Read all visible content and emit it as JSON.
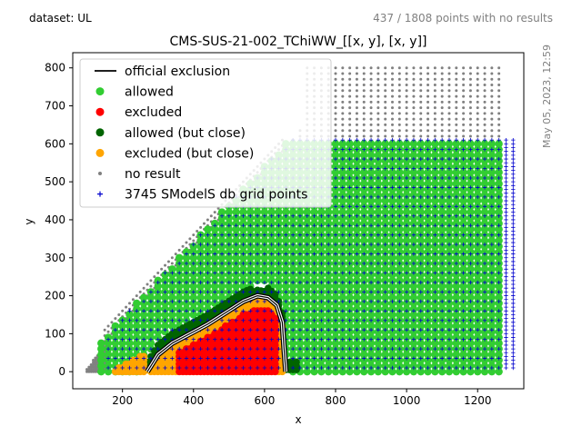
{
  "header": {
    "dataset_label": "dataset: UL",
    "no_results_label": "437 / 1808 points with no results",
    "timestamp": "May 05, 2023, 12:59"
  },
  "chart_data": {
    "type": "scatter",
    "title": "CMS-SUS-21-002_TChiWW_[[x, y], [x, y]]",
    "xlabel": "x",
    "ylabel": "y",
    "xlim": [
      60,
      1330
    ],
    "ylim": [
      -45,
      840
    ],
    "xticks": [
      "200",
      "400",
      "600",
      "800",
      "1000",
      "1200"
    ],
    "yticks": [
      "0",
      "100",
      "200",
      "300",
      "400",
      "500",
      "600",
      "700",
      "800"
    ],
    "grid": false,
    "legend_position": "top-left",
    "legend": [
      {
        "label": "official exclusion",
        "kind": "line",
        "color": "#000000"
      },
      {
        "label": "allowed",
        "kind": "marker",
        "color": "#32cd32"
      },
      {
        "label": "excluded",
        "kind": "marker",
        "color": "#ff0000"
      },
      {
        "label": "allowed (but close)",
        "kind": "marker",
        "color": "#006400"
      },
      {
        "label": "excluded (but close)",
        "kind": "marker",
        "color": "#ffa500"
      },
      {
        "label": "no result",
        "kind": "dot",
        "color": "#808080"
      },
      {
        "label": "3745 SModelS db grid points",
        "kind": "plus",
        "color": "#0000cd"
      }
    ],
    "regions": {
      "no_result_grid": {
        "x_range": [
          700,
          1260
        ],
        "y_range": [
          0,
          800
        ],
        "note": "grey points along upper diagonal band and beyond y=610"
      },
      "allowed_grid": {
        "x_range": [
          140,
          1260
        ],
        "y_range": [
          0,
          610
        ]
      },
      "excluded_region": {
        "x_range": [
          360,
          630
        ],
        "y_range": [
          0,
          190
        ]
      },
      "excluded_close_region": {
        "x_range": [
          180,
          680
        ],
        "y_range": [
          0,
          200
        ]
      },
      "allowed_close_region": {
        "x_range": [
          240,
          690
        ],
        "y_range": [
          0,
          220
        ]
      },
      "db_grid_points": {
        "x_range": [
          160,
          1300
        ],
        "y_range": [
          10,
          610
        ]
      }
    },
    "official_exclusion": {
      "x": [
        270,
        300,
        340,
        390,
        440,
        490,
        540,
        580,
        610,
        635,
        650,
        655,
        660
      ],
      "y": [
        0,
        45,
        75,
        100,
        125,
        155,
        185,
        200,
        195,
        175,
        130,
        60,
        0
      ]
    }
  }
}
